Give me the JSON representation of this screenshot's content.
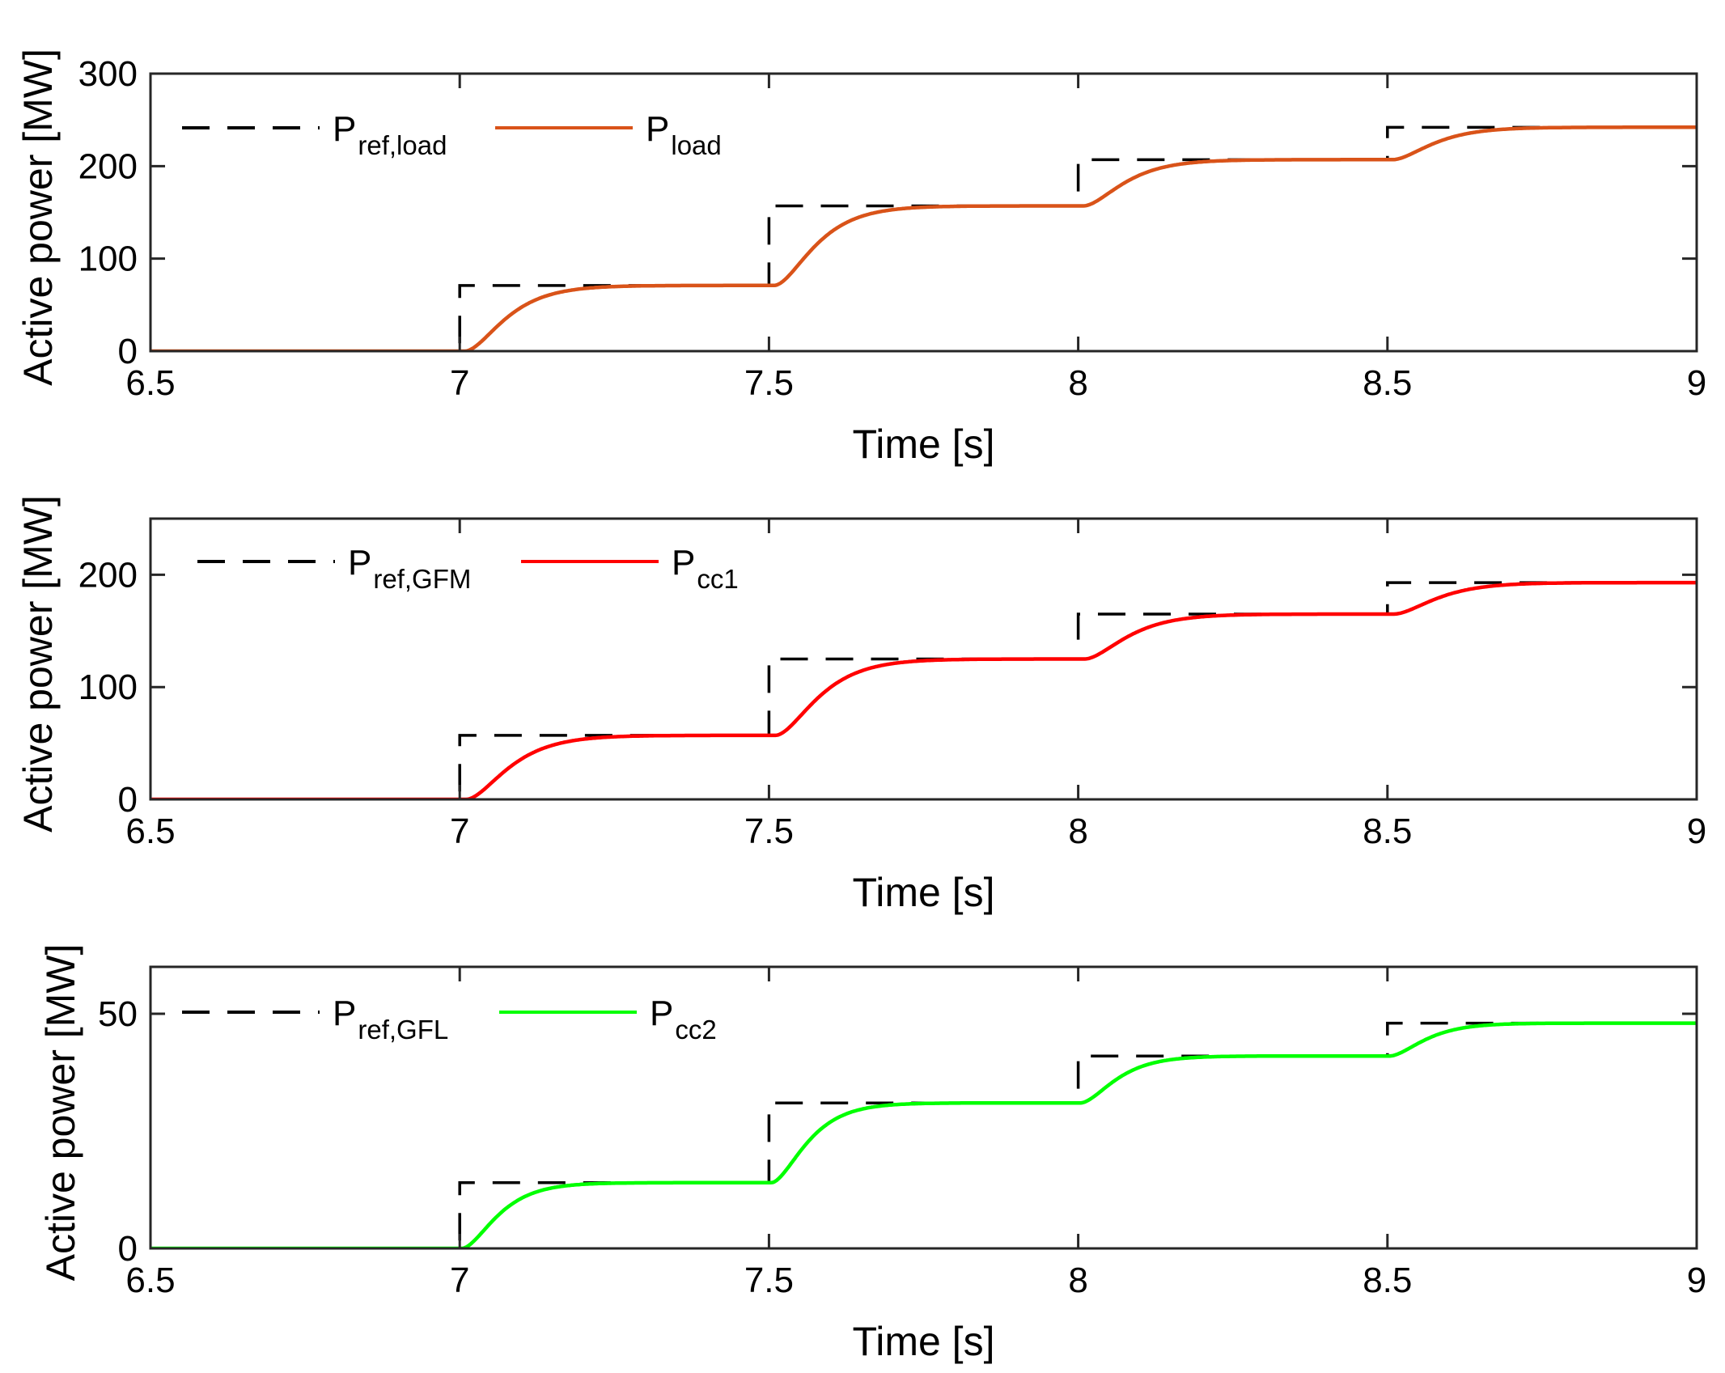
{
  "chart_data": [
    {
      "type": "line",
      "xlabel": "Time [s]",
      "ylabel": "Active power [MW]",
      "xlim": [
        6.5,
        9
      ],
      "ylim": [
        0,
        300
      ],
      "xticks": [
        6.5,
        7,
        7.5,
        8,
        8.5,
        9
      ],
      "xtick_labels": [
        "6.5",
        "7",
        "7.5",
        "8",
        "8.5",
        "9"
      ],
      "yticks": [
        0,
        100,
        200,
        300
      ],
      "ytick_labels": [
        "0",
        "100",
        "200",
        "300"
      ],
      "grid": false,
      "legend_position": "top-left, horizontal",
      "series": [
        {
          "name": "P",
          "name_sub": "ref,load",
          "role": "reference",
          "style": "dashed",
          "color": "#000000",
          "step_times": [
            7,
            7.5,
            8,
            8.5
          ],
          "levels": [
            0,
            71,
            157,
            207,
            242
          ]
        },
        {
          "name": "P",
          "name_sub": "load",
          "role": "response",
          "style": "solid",
          "color": "#D95319",
          "step_times": [
            7,
            7.5,
            8,
            8.5
          ],
          "levels": [
            0,
            71,
            157,
            207,
            242
          ],
          "start_delay": 0.008,
          "time_constant": 0.04
        }
      ]
    },
    {
      "type": "line",
      "xlabel": "Time [s]",
      "ylabel": "Active power [MW]",
      "xlim": [
        6.5,
        9
      ],
      "ylim": [
        0,
        250
      ],
      "xticks": [
        6.5,
        7,
        7.5,
        8,
        8.5,
        9
      ],
      "xtick_labels": [
        "6.5",
        "7",
        "7.5",
        "8",
        "8.5",
        "9"
      ],
      "yticks": [
        0,
        100,
        200
      ],
      "ytick_labels": [
        "0",
        "100",
        "200"
      ],
      "grid": false,
      "legend_position": "top-left, horizontal",
      "series": [
        {
          "name": "P",
          "name_sub": "ref,GFM",
          "role": "reference",
          "style": "dashed",
          "color": "#000000",
          "step_times": [
            7,
            7.5,
            8,
            8.5
          ],
          "levels": [
            0,
            57,
            125,
            165,
            193
          ]
        },
        {
          "name": "P",
          "name_sub": "cc1",
          "role": "response",
          "style": "solid",
          "color": "#FF0000",
          "step_times": [
            7,
            7.5,
            8,
            8.5
          ],
          "levels": [
            0,
            57,
            125,
            165,
            193
          ],
          "start_delay": 0.01,
          "time_constant": 0.042
        }
      ]
    },
    {
      "type": "line",
      "xlabel": "Time [s]",
      "ylabel": "Active power [MW]",
      "xlim": [
        6.5,
        9
      ],
      "ylim": [
        0,
        60
      ],
      "xticks": [
        6.5,
        7,
        7.5,
        8,
        8.5,
        9
      ],
      "xtick_labels": [
        "6.5",
        "7",
        "7.5",
        "8",
        "8.5",
        "9"
      ],
      "yticks": [
        0,
        50
      ],
      "ytick_labels": [
        "0",
        "50"
      ],
      "grid": false,
      "legend_position": "top-left, horizontal",
      "series": [
        {
          "name": "P",
          "name_sub": "ref,GFL",
          "role": "reference",
          "style": "dashed",
          "color": "#000000",
          "step_times": [
            7,
            7.5,
            8,
            8.5
          ],
          "levels": [
            0,
            14,
            31,
            41,
            48
          ]
        },
        {
          "name": "P",
          "name_sub": "cc2",
          "role": "response",
          "style": "solid",
          "color": "#00FF00",
          "step_times": [
            7,
            7.5,
            8,
            8.5
          ],
          "levels": [
            0,
            14,
            31,
            41,
            48
          ],
          "start_delay": 0.003,
          "time_constant": 0.035
        }
      ]
    }
  ]
}
